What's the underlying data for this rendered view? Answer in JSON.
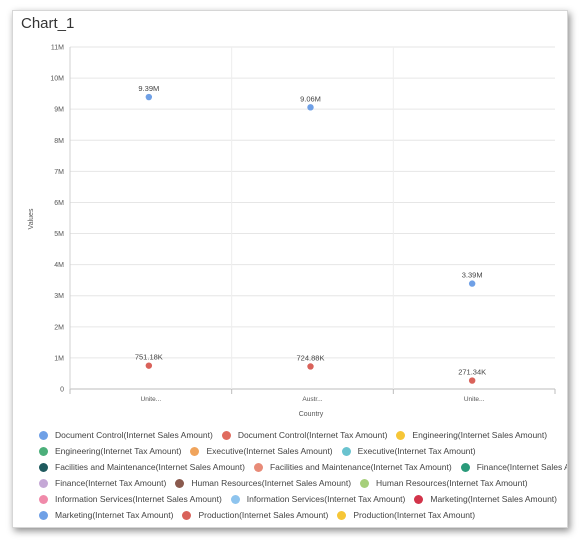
{
  "chart_data": {
    "type": "scatter",
    "title": "Chart_1",
    "xlabel": "Country",
    "ylabel": "Values",
    "categories": [
      "Unite...",
      "Austr...",
      "Unite..."
    ],
    "y_ticks": [
      "0",
      "1M",
      "2M",
      "3M",
      "4M",
      "5M",
      "6M",
      "7M",
      "8M",
      "9M",
      "10M",
      "11M"
    ],
    "ylim": [
      0,
      11000000
    ],
    "grid": true,
    "legend_position": "bottom",
    "series": [
      {
        "name": "Document Control(Internet Sales Amount)",
        "color": "#6fa0e6",
        "values": [
          null,
          null,
          null
        ],
        "labels": [
          null,
          null,
          null
        ]
      },
      {
        "name": "Document Control(Internet Tax Amount)",
        "color": "#e06b5e",
        "values": [
          null,
          null,
          null
        ],
        "labels": [
          null,
          null,
          null
        ]
      },
      {
        "name": "Engineering(Internet Sales Amount)",
        "color": "#f6c637",
        "values": [
          null,
          null,
          null
        ],
        "labels": [
          null,
          null,
          null
        ]
      },
      {
        "name": "Engineering(Internet Tax Amount)",
        "color": "#4caf7a",
        "values": [
          null,
          null,
          null
        ],
        "labels": [
          null,
          null,
          null
        ]
      },
      {
        "name": "Executive(Internet Sales Amount)",
        "color": "#f0a45c",
        "values": [
          null,
          null,
          null
        ],
        "labels": [
          null,
          null,
          null
        ]
      },
      {
        "name": "Executive(Internet Tax Amount)",
        "color": "#6ac3cf",
        "values": [
          null,
          null,
          null
        ],
        "labels": [
          null,
          null,
          null
        ]
      },
      {
        "name": "Facilities and Maintenance(Internet Sales Amount)",
        "color": "#1f5a5e",
        "values": [
          null,
          null,
          null
        ],
        "labels": [
          null,
          null,
          null
        ]
      },
      {
        "name": "Facilities and Maintenance(Internet Tax Amount)",
        "color": "#e88b78",
        "values": [
          null,
          null,
          null
        ],
        "labels": [
          null,
          null,
          null
        ]
      },
      {
        "name": "Finance(Internet Sales Amount)",
        "color": "#2a9a7a",
        "values": [
          null,
          null,
          null
        ],
        "labels": [
          null,
          null,
          null
        ]
      },
      {
        "name": "Finance(Internet Tax Amount)",
        "color": "#c5a8d6",
        "values": [
          null,
          null,
          null
        ],
        "labels": [
          null,
          null,
          null
        ]
      },
      {
        "name": "Human Resources(Internet Sales Amount)",
        "color": "#8a5a4e",
        "values": [
          null,
          null,
          null
        ],
        "labels": [
          null,
          null,
          null
        ]
      },
      {
        "name": "Human Resources(Internet Tax Amount)",
        "color": "#a6cf7a",
        "values": [
          null,
          null,
          null
        ],
        "labels": [
          null,
          null,
          null
        ]
      },
      {
        "name": "Information Services(Internet Sales Amount)",
        "color": "#f08aaa",
        "values": [
          null,
          null,
          null
        ],
        "labels": [
          null,
          null,
          null
        ]
      },
      {
        "name": "Information Services(Internet Tax Amount)",
        "color": "#8ec4ee",
        "values": [
          null,
          null,
          null
        ],
        "labels": [
          null,
          null,
          null
        ]
      },
      {
        "name": "Marketing(Internet Sales Amount)",
        "color": "#d2344a",
        "values": [
          null,
          null,
          null
        ],
        "labels": [
          null,
          null,
          null
        ]
      },
      {
        "name": "Marketing(Internet Tax Amount)",
        "color": "#6fa0e6",
        "values": [
          9390000,
          9060000,
          3390000
        ],
        "labels": [
          "9.39M",
          "9.06M",
          "3.39M"
        ]
      },
      {
        "name": "Production(Internet Sales Amount)",
        "color": "#d9625a",
        "values": [
          751180,
          724880,
          271340
        ],
        "labels": [
          "751.18K",
          "724.88K",
          "271.34K"
        ]
      },
      {
        "name": "Production(Internet Tax Amount)",
        "color": "#f6c637",
        "values": [
          null,
          null,
          null
        ],
        "labels": [
          null,
          null,
          null
        ]
      }
    ]
  }
}
